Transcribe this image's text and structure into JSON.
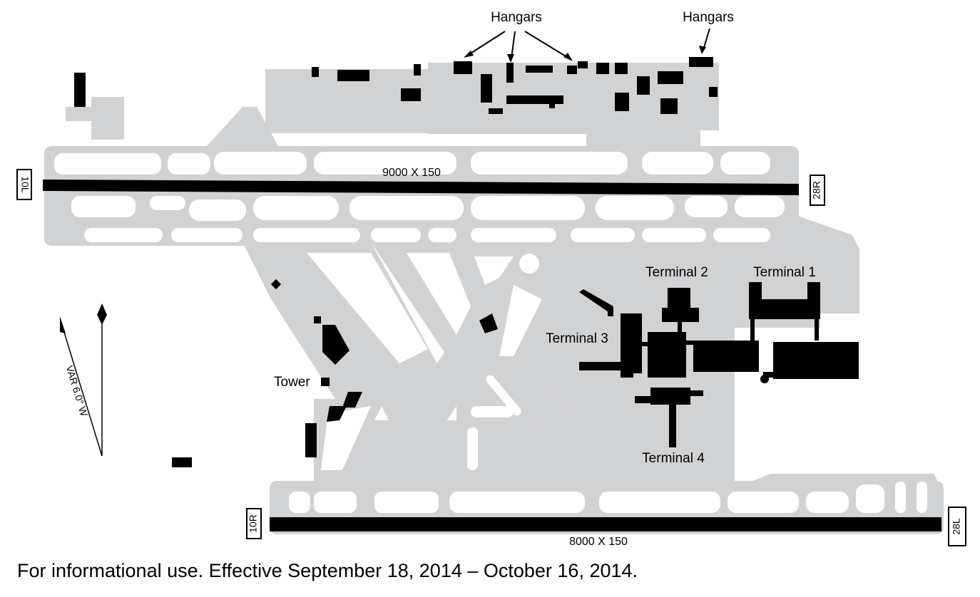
{
  "runways": {
    "north": {
      "dimensions": "9000 X 150",
      "west_end": "10L",
      "east_end": "28R"
    },
    "south": {
      "dimensions": "8000 X 150",
      "west_end": "10R",
      "east_end": "28L"
    }
  },
  "labels": {
    "hangars_left": "Hangars",
    "hangars_right": "Hangars",
    "terminal_1": "Terminal 1",
    "terminal_2": "Terminal 2",
    "terminal_3": "Terminal 3",
    "terminal_4": "Terminal 4",
    "tower": "Tower",
    "variation": "VAR 6.0° W"
  },
  "footer": "For informational use. Effective September 18, 2014 – October 16, 2014.",
  "colors": {
    "pavement": "#d1d2d4",
    "buildings": "#000000",
    "background": "#ffffff"
  }
}
